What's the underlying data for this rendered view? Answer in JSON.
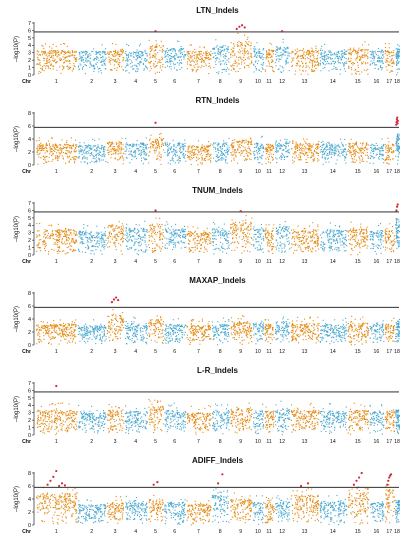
{
  "chart_data": {
    "type": "scatter",
    "chromosome_label": "Chr",
    "y_label": "–log10(P)",
    "chromosomes": [
      "1",
      "2",
      "3",
      "4",
      "5",
      "6",
      "7",
      "8",
      "9",
      "10",
      "11",
      "12",
      "13",
      "14",
      "15",
      "16",
      "17",
      "18"
    ],
    "chromosome_relative_lengths": [
      12.5,
      8.6,
      5.1,
      6.9,
      4.6,
      6.5,
      7.4,
      5.3,
      6.6,
      3.3,
      2.8,
      4.5,
      8.6,
      8.2,
      6.4,
      4.3,
      2.9,
      1.2
    ],
    "series_colors": [
      "#e38a13",
      "#4aa8cf"
    ],
    "highlight_color": "#d0283c",
    "panels": [
      {
        "title": "LTN_Indels",
        "ylim": [
          0,
          7
        ],
        "yticks": [
          0,
          1,
          2,
          3,
          4,
          5,
          6,
          7
        ],
        "threshold": 5.8,
        "base_height": [
          3.3,
          3.2,
          3.4,
          3.2,
          4.0,
          3.6,
          3.2,
          3.8,
          4.6,
          3.6,
          3.4,
          3.8,
          3.4,
          3.3,
          3.5,
          3.2,
          3.3,
          3.6
        ],
        "significant_points": [
          {
            "chr": "9",
            "values": [
              6.2,
              6.5,
              6.7,
              6.4
            ]
          },
          {
            "chr": "5",
            "values": [
              5.9
            ]
          },
          {
            "chr": "12",
            "values": [
              5.9
            ]
          }
        ]
      },
      {
        "title": "RTN_Indels",
        "ylim": [
          0,
          8
        ],
        "yticks": [
          0,
          2,
          4,
          6,
          8
        ],
        "threshold": 5.8,
        "base_height": [
          3.2,
          3.0,
          3.6,
          3.4,
          4.0,
          3.4,
          3.0,
          3.4,
          3.8,
          3.5,
          3.2,
          3.6,
          3.3,
          3.2,
          3.4,
          3.1,
          3.2,
          4.8
        ],
        "significant_points": [
          {
            "chr": "18",
            "values": [
              6.2,
              6.6,
              7.0,
              7.3,
              6.4,
              6.8
            ]
          },
          {
            "chr": "5",
            "values": [
              6.5
            ]
          }
        ]
      },
      {
        "title": "TNUM_Indels",
        "ylim": [
          0,
          7
        ],
        "yticks": [
          0,
          1,
          2,
          3,
          4,
          5,
          6,
          7
        ],
        "threshold": 5.8,
        "base_height": [
          3.4,
          3.2,
          4.0,
          3.6,
          4.2,
          3.6,
          3.2,
          3.6,
          4.4,
          3.6,
          3.4,
          3.8,
          3.4,
          3.4,
          3.5,
          3.3,
          3.4,
          4.6
        ],
        "significant_points": [
          {
            "chr": "18",
            "values": [
              6.0,
              6.5,
              6.8
            ]
          },
          {
            "chr": "9",
            "values": [
              5.9
            ]
          },
          {
            "chr": "5",
            "values": [
              6.0
            ]
          }
        ]
      },
      {
        "title": "MAXAP_Indels",
        "ylim": [
          0,
          8
        ],
        "yticks": [
          0,
          2,
          4,
          6,
          8
        ],
        "threshold": 5.8,
        "base_height": [
          3.2,
          3.0,
          4.6,
          3.3,
          3.9,
          3.2,
          3.0,
          3.2,
          3.6,
          3.4,
          3.2,
          3.6,
          3.3,
          3.2,
          3.4,
          3.2,
          3.2,
          3.4
        ],
        "significant_points": [
          {
            "chr": "3",
            "values": [
              6.6,
              7.0,
              7.3,
              6.9
            ]
          }
        ]
      },
      {
        "title": "L-R_Indels",
        "ylim": [
          0,
          7
        ],
        "yticks": [
          0,
          1,
          2,
          3,
          4,
          5,
          6,
          7
        ],
        "threshold": 5.8,
        "base_height": [
          3.3,
          3.0,
          3.4,
          3.2,
          3.8,
          3.3,
          3.0,
          3.2,
          3.6,
          3.4,
          3.2,
          3.6,
          3.3,
          3.2,
          3.3,
          3.1,
          3.2,
          3.4
        ],
        "significant_points": [
          {
            "chr": "1",
            "values": [
              6.6
            ]
          }
        ]
      },
      {
        "title": "ADIFF_Indels",
        "ylim": [
          0,
          8
        ],
        "yticks": [
          0,
          2,
          4,
          6,
          8
        ],
        "threshold": 5.8,
        "base_height": [
          4.8,
          3.2,
          3.4,
          3.4,
          4.0,
          3.5,
          3.2,
          4.6,
          4.0,
          3.6,
          3.4,
          3.6,
          4.6,
          3.6,
          5.0,
          3.6,
          5.4,
          3.8
        ],
        "significant_points": [
          {
            "chr": "1",
            "values": [
              6.2,
              6.8,
              7.4,
              8.3,
              6.0,
              6.4,
              6.1
            ]
          },
          {
            "chr": "5",
            "values": [
              6.2,
              6.6
            ]
          },
          {
            "chr": "8",
            "values": [
              6.4,
              7.8
            ]
          },
          {
            "chr": "13",
            "values": [
              6.0,
              6.4
            ]
          },
          {
            "chr": "15",
            "values": [
              6.2,
              6.8,
              7.3,
              8.0
            ]
          },
          {
            "chr": "17",
            "values": [
              6.2,
              6.8,
              7.3,
              7.6,
              7.8
            ]
          }
        ]
      }
    ]
  }
}
